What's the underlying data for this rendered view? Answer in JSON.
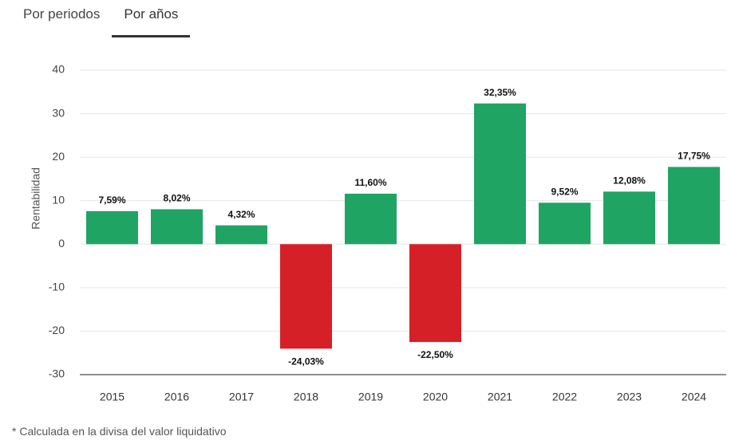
{
  "tabs": [
    {
      "label": "Por periodos",
      "active": false
    },
    {
      "label": "Por años",
      "active": true
    }
  ],
  "footnote": "* Calculada en la divisa del valor liquidativo",
  "colors": {
    "positive": "#1fa463",
    "negative": "#d62027",
    "grid": "#e6e6e6",
    "baseline": "#222222"
  },
  "chart_data": {
    "type": "bar",
    "categories": [
      "2015",
      "2016",
      "2017",
      "2018",
      "2019",
      "2020",
      "2021",
      "2022",
      "2023",
      "2024"
    ],
    "values": [
      7.59,
      8.02,
      4.32,
      -24.03,
      11.6,
      -22.5,
      32.35,
      9.52,
      12.08,
      17.75
    ],
    "value_labels": [
      "7,59%",
      "8,02%",
      "4,32%",
      "-24,03%",
      "11,60%",
      "-22,50%",
      "32,35%",
      "9,52%",
      "12,08%",
      "17,75%"
    ],
    "ylabel": "Rentabilidad",
    "ylim": [
      -30,
      40
    ],
    "yticks": [
      40,
      30,
      20,
      10,
      0,
      -10,
      -20,
      -30
    ],
    "grid": true
  }
}
